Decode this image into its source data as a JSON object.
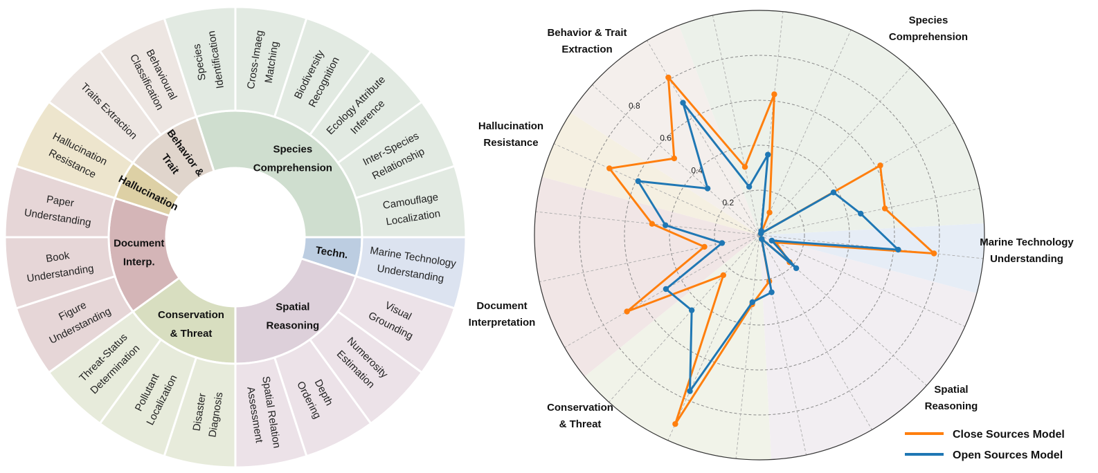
{
  "chart_data": [
    {
      "type": "sunburst",
      "start_angle_deg": 342,
      "groups": [
        {
          "label": [
            "Species",
            "Comprehension"
          ],
          "color_inner": "#cfdecf",
          "color_outer": "#e2eae2",
          "items": [
            [
              "Species",
              "Identification"
            ],
            [
              "Cross-Imaeg",
              "Matching"
            ],
            [
              "Biodiversity",
              "Recognition"
            ],
            [
              "Ecology Attribute",
              "Inference"
            ],
            [
              "Inter-Species",
              "Relationship"
            ],
            [
              "Camouflage",
              "Localization"
            ]
          ]
        },
        {
          "label": [
            "Techn."
          ],
          "color_inner": "#bccde1",
          "color_outer": "#dce3f0",
          "items": [
            [
              "Marine Technology",
              "Understanding"
            ]
          ]
        },
        {
          "label": [
            "Spatial",
            "Reasoning"
          ],
          "color_inner": "#ddd0da",
          "color_outer": "#ece2e8",
          "items": [
            [
              "Visual",
              "Grounding"
            ],
            [
              "Numerosity",
              "Estimation"
            ],
            [
              "Depth",
              "Ordering"
            ],
            [
              "Spatial Relation",
              "Assessment"
            ]
          ]
        },
        {
          "label": [
            "Conservation",
            "& Threat"
          ],
          "color_inner": "#d8dec0",
          "color_outer": "#e7ebdb",
          "items": [
            [
              "Disaster",
              "Diagnosis"
            ],
            [
              "Pollutant",
              "Localization"
            ],
            [
              "Threat-Status",
              "Determination"
            ]
          ]
        },
        {
          "label": [
            "Document",
            "Interp."
          ],
          "color_inner": "#d4b5b7",
          "color_outer": "#e6d6d7",
          "items": [
            [
              "Figure",
              "Understanding"
            ],
            [
              "Book",
              "Understanding"
            ],
            [
              "Paper",
              "Understanding"
            ]
          ]
        },
        {
          "label": [
            "Hallucination"
          ],
          "color_inner": "#ddd0a5",
          "color_outer": "#ede5cd",
          "items": [
            [
              "Hallucination",
              "Resistance"
            ]
          ]
        },
        {
          "label": [
            "Behavior &",
            "Trait"
          ],
          "color_inner": "#e0d5cc",
          "color_outer": "#ede6e2",
          "items": [
            [
              "Traits Extraction"
            ],
            [
              "Behavioural",
              "Classification"
            ]
          ]
        }
      ]
    },
    {
      "type": "radar",
      "rlim": [
        0,
        1.0
      ],
      "rticks": [
        "0.2",
        "0.4",
        "0.6",
        "0.8"
      ],
      "rtick_values": [
        0.2,
        0.4,
        0.6,
        0.8
      ],
      "axes": [
        "Species Identification",
        "Cross-Imaeg Matching",
        "Biodiversity Recognition",
        "Ecology Attribute Inference",
        "Inter-Species Relationship",
        "Camouflage Localization",
        "Marine Technology Understanding",
        "Visual Grounding",
        "Numerosity Estimation",
        "Depth Ordering",
        "Spatial Relation Assessment",
        "Disaster Diagnosis",
        "Pollutant Localization",
        "Threat-Status Determination",
        "Figure Understanding",
        "Book Understanding",
        "Paper Understanding",
        "Hallucination Resistance",
        "Traits Extraction",
        "Behavioural Classification"
      ],
      "group_labels": [
        {
          "label": [
            "Species",
            "Comprehension"
          ],
          "axes_count": 6,
          "color": "#ecf1ea"
        },
        {
          "label": [
            "Marine Technology",
            "Understanding"
          ],
          "axes_count": 1,
          "color": "#e6edf6"
        },
        {
          "label": [
            "Spatial",
            "Reasoning"
          ],
          "axes_count": 4,
          "color": "#f2eef2"
        },
        {
          "label": [
            "Conservation",
            "& Threat"
          ],
          "axes_count": 3,
          "color": "#f1f3e9"
        },
        {
          "label": [
            "Document",
            "Interpretation"
          ],
          "axes_count": 3,
          "color": "#f1e6e6"
        },
        {
          "label": [
            "Hallucination",
            "Resistance"
          ],
          "axes_count": 1,
          "color": "#f5f0e2"
        },
        {
          "label": [
            "Behavior & Trait",
            "Extraction"
          ],
          "axes_count": 2,
          "color": "#f4efec"
        }
      ],
      "series": [
        {
          "name": "Close Sources Model",
          "color": "#ff7f0e",
          "values": [
            0.31,
            0.63,
            0.11,
            0.01,
            0.62,
            0.57,
            0.78,
            0.08,
            0.18,
            0.02,
            0.21,
            0.31,
            0.92,
            0.24,
            0.68,
            0.25,
            0.48,
            0.73,
            0.51,
            0.81
          ]
        },
        {
          "name": "Open Sources Model",
          "color": "#1f77b4",
          "values": [
            0.22,
            0.36,
            0.02,
            0.01,
            0.38,
            0.46,
            0.62,
            0.06,
            0.22,
            0.02,
            0.26,
            0.3,
            0.76,
            0.45,
            0.48,
            0.17,
            0.42,
            0.59,
            0.31,
            0.68
          ]
        }
      ],
      "legend_position": "bottom-right",
      "grid": true
    }
  ]
}
